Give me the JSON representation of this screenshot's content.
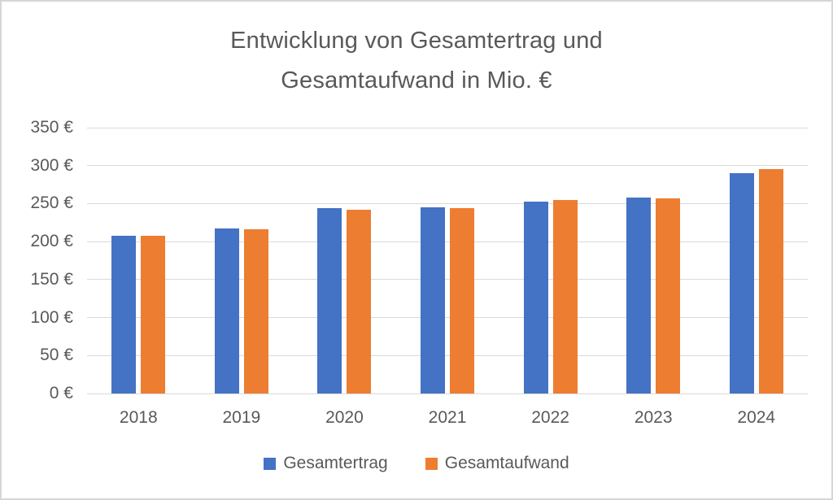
{
  "title": {
    "line1": "Entwicklung von Gesamtertrag und",
    "line2": "Gesamtaufwand in Mio. €"
  },
  "chart_data": {
    "type": "bar",
    "title": "Entwicklung von Gesamtertrag und Gesamtaufwand in Mio. €",
    "categories": [
      "2018",
      "2019",
      "2020",
      "2021",
      "2022",
      "2023",
      "2024"
    ],
    "series": [
      {
        "name": "Gesamtertrag",
        "color": "#4472C4",
        "values": [
          208,
          217,
          244,
          245,
          253,
          258,
          290
        ]
      },
      {
        "name": "Gesamtaufwand",
        "color": "#ED7D31",
        "values": [
          208,
          216,
          242,
          244,
          255,
          257,
          295
        ]
      }
    ],
    "xlabel": "",
    "ylabel": "",
    "ylim": [
      0,
      350
    ],
    "ytick_step": 50,
    "ytick_labels": [
      "0 €",
      "50 €",
      "100 €",
      "150 €",
      "200 €",
      "250 €",
      "300 €",
      "350 €"
    ],
    "grid": true,
    "legend_position": "bottom"
  },
  "colors": {
    "text": "#595959",
    "gridline": "#d9d9d9",
    "background": "#ffffff",
    "frame_border": "#d6d6d6"
  }
}
